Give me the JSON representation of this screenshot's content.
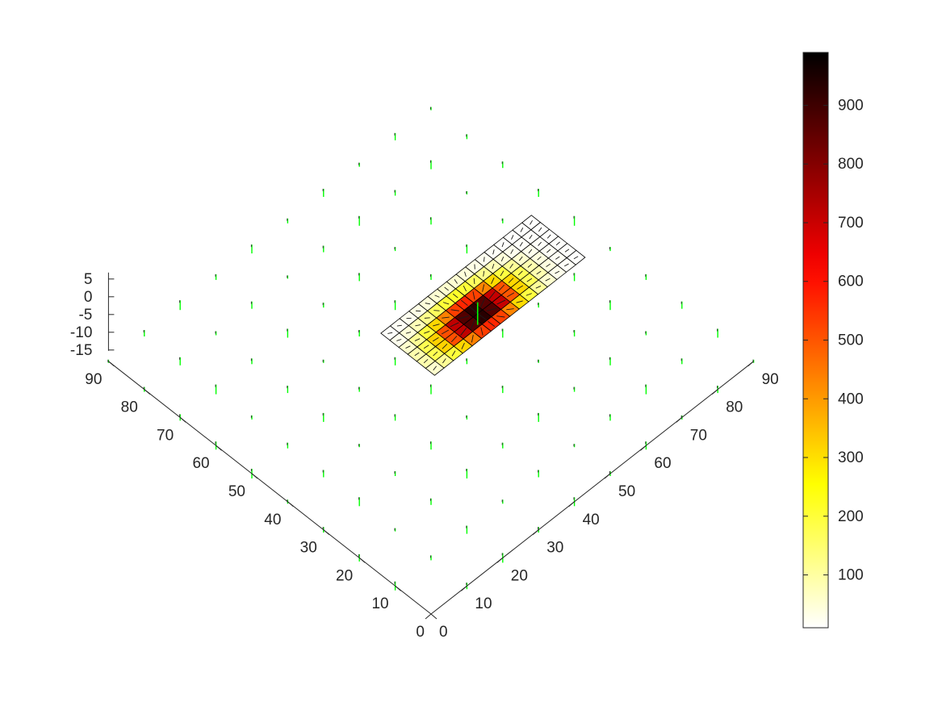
{
  "chart_data": {
    "type": "surface3d",
    "title": "",
    "xlabel": "",
    "ylabel": "",
    "zlabel": "",
    "xlim": [
      0,
      90
    ],
    "ylim": [
      0,
      90
    ],
    "zlim": [
      -15,
      5
    ],
    "x_ticks": [
      "0",
      "10",
      "20",
      "30",
      "40",
      "50",
      "60",
      "70",
      "80",
      "90"
    ],
    "y_ticks": [
      "0",
      "10",
      "20",
      "30",
      "40",
      "50",
      "60",
      "70",
      "80",
      "90"
    ],
    "z_ticks": [
      "5",
      "0",
      "-5",
      "-10",
      "-15"
    ],
    "colorbar": {
      "colormap": "hot (reversed)",
      "range": [
        10,
        990
      ],
      "ticks": [
        "100",
        "200",
        "300",
        "400",
        "500",
        "600",
        "700",
        "800",
        "900"
      ]
    },
    "surface": {
      "description_free": true,
      "x_range": [
        42,
        57
      ],
      "y_range": [
        43,
        85
      ],
      "z": 0,
      "peak": [
        47,
        60
      ],
      "peak_value": 990
    },
    "quiver_markers": {
      "color": "#00ff00",
      "grid_step": 10
    }
  }
}
